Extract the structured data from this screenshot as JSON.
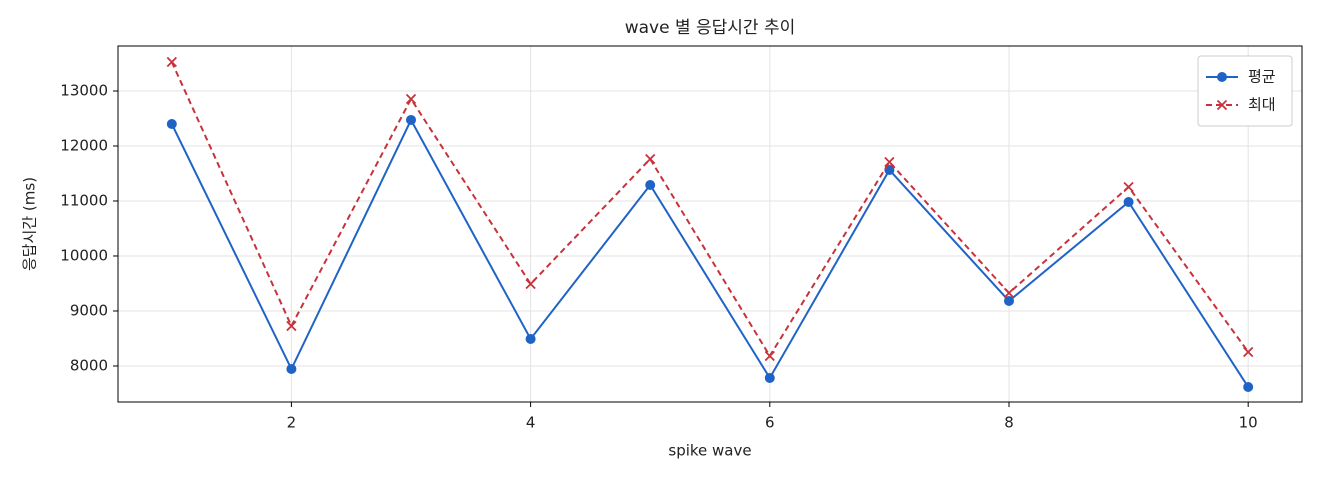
{
  "chart_data": {
    "type": "line",
    "title": "wave 별 응답시간 추이",
    "xlabel": "spike wave",
    "ylabel": "응답시간 (ms)",
    "x": [
      1,
      2,
      3,
      4,
      5,
      6,
      7,
      8,
      9,
      10
    ],
    "series": [
      {
        "name": "평균",
        "color": "#1f63c6",
        "marker": "o",
        "linestyle": "-",
        "values": [
          12400,
          7945,
          12473,
          8491,
          11291,
          7782,
          11564,
          9182,
          10982,
          7618
        ]
      },
      {
        "name": "최대",
        "color": "#c8323a",
        "marker": "x",
        "linestyle": "--",
        "values": [
          13527,
          8727,
          12855,
          9491,
          11764,
          8182,
          11709,
          9327,
          11255,
          8255
        ]
      }
    ],
    "xlim": [
      0.55,
      10.45
    ],
    "xticks": [
      2,
      4,
      6,
      8,
      10
    ],
    "ylim": [
      7345,
      13818
    ],
    "yticks": [
      8000,
      9000,
      10000,
      11000,
      12000,
      13000
    ],
    "grid": true,
    "legend": "upper right"
  }
}
